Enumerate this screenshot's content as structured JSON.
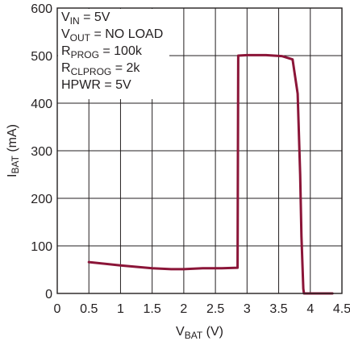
{
  "chart_data": {
    "type": "line",
    "title": "",
    "xlabel": {
      "main": "V",
      "sub": "BAT",
      "unit": " (V)"
    },
    "ylabel": {
      "main": "I",
      "sub": "BAT",
      "unit": " (mA)"
    },
    "xlim": [
      0,
      4.5
    ],
    "ylim": [
      0,
      600
    ],
    "xticks": [
      0,
      0.5,
      1,
      1.5,
      2,
      2.5,
      3,
      3.5,
      4,
      4.5
    ],
    "xtick_labels": [
      "0",
      "0.5",
      "1",
      "1.5",
      "2",
      "2.5",
      "3",
      "3.5",
      "4",
      "4.5"
    ],
    "yticks": [
      0,
      100,
      200,
      300,
      400,
      500,
      600
    ],
    "ytick_labels": [
      "0",
      "100",
      "200",
      "300",
      "400",
      "500",
      "600"
    ],
    "grid": true,
    "legend": "none",
    "series": [
      {
        "color": "#8b1538",
        "x": [
          0.5,
          1.0,
          1.5,
          1.8,
          2.0,
          2.3,
          2.6,
          2.85,
          2.86,
          3.0,
          3.3,
          3.55,
          3.72,
          3.8,
          3.84,
          3.86,
          3.89,
          3.9,
          4.0,
          4.35
        ],
        "y": [
          66,
          59,
          53,
          51,
          51,
          53,
          53,
          54,
          500,
          501,
          501,
          499,
          492,
          420,
          250,
          120,
          10,
          0,
          0,
          0
        ]
      }
    ],
    "annotation": [
      {
        "parts": [
          {
            "t": "V"
          },
          {
            "t": "IN",
            "sub": true
          },
          {
            "t": " = 5V"
          }
        ]
      },
      {
        "parts": [
          {
            "t": "V"
          },
          {
            "t": "OUT",
            "sub": true
          },
          {
            "t": " = NO LOAD"
          }
        ]
      },
      {
        "parts": [
          {
            "t": "R"
          },
          {
            "t": "PROG",
            "sub": true
          },
          {
            "t": " = 100k"
          }
        ]
      },
      {
        "parts": [
          {
            "t": "R"
          },
          {
            "t": "CLPROG",
            "sub": true
          },
          {
            "t": " = 2k"
          }
        ]
      },
      {
        "parts": [
          {
            "t": "HPWR = 5V"
          }
        ]
      }
    ]
  }
}
